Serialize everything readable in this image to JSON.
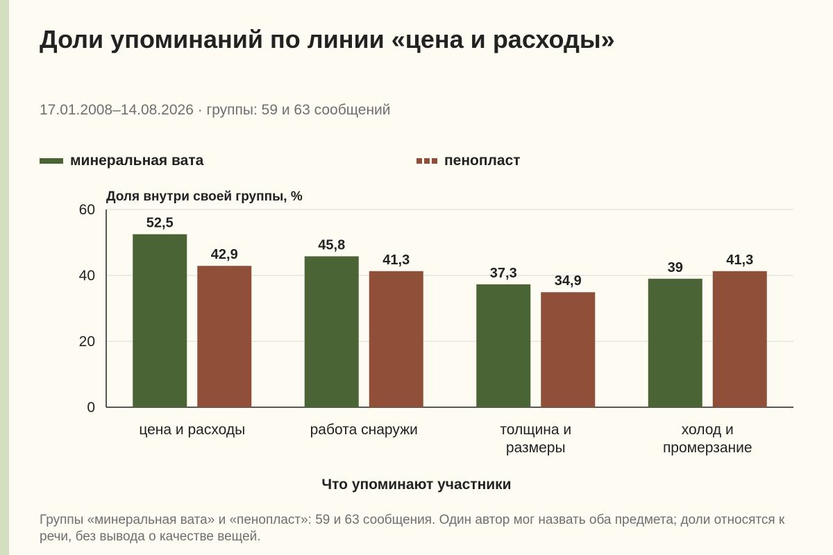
{
  "title": "Доли упоминаний по линии «цена и расходы»",
  "subtitle": "17.01.2008–14.08.2026 · группы: 59 и 63 сообщений",
  "note": "Группы «минеральная вата» и «пенопласт»: 59 и 63 сообщения. Один автор мог назвать оба предмета; доли относятся к речи, без вывода о качестве вещей.",
  "colors": {
    "background": "#fdfbf2",
    "stripe": "#d3dfc0",
    "series1": "#4a6436",
    "series2": "#8f4f38",
    "grid": "#d9d9d9",
    "axis": "#222222"
  },
  "chart_data": {
    "type": "bar",
    "title": "Доли упоминаний по линии «цена и расходы»",
    "xlabel": "Что упоминают участники",
    "ylabel": "Доля внутри своей группы, %",
    "ylim": [
      0,
      60
    ],
    "yticks": [
      0,
      20,
      40,
      60
    ],
    "grid": true,
    "legend_position": "top",
    "categories": [
      "цена и расходы",
      "работа снаружи",
      "толщина и размеры",
      "холод и промерзание"
    ],
    "series": [
      {
        "name": "минеральная вата",
        "values": [
          52.5,
          45.8,
          37.3,
          39
        ],
        "labels": [
          "52,5",
          "45,8",
          "37,3",
          "39"
        ]
      },
      {
        "name": "пенопласт",
        "values": [
          42.9,
          41.3,
          34.9,
          41.3
        ],
        "labels": [
          "42,9",
          "41,3",
          "34,9",
          "41,3"
        ]
      }
    ]
  }
}
